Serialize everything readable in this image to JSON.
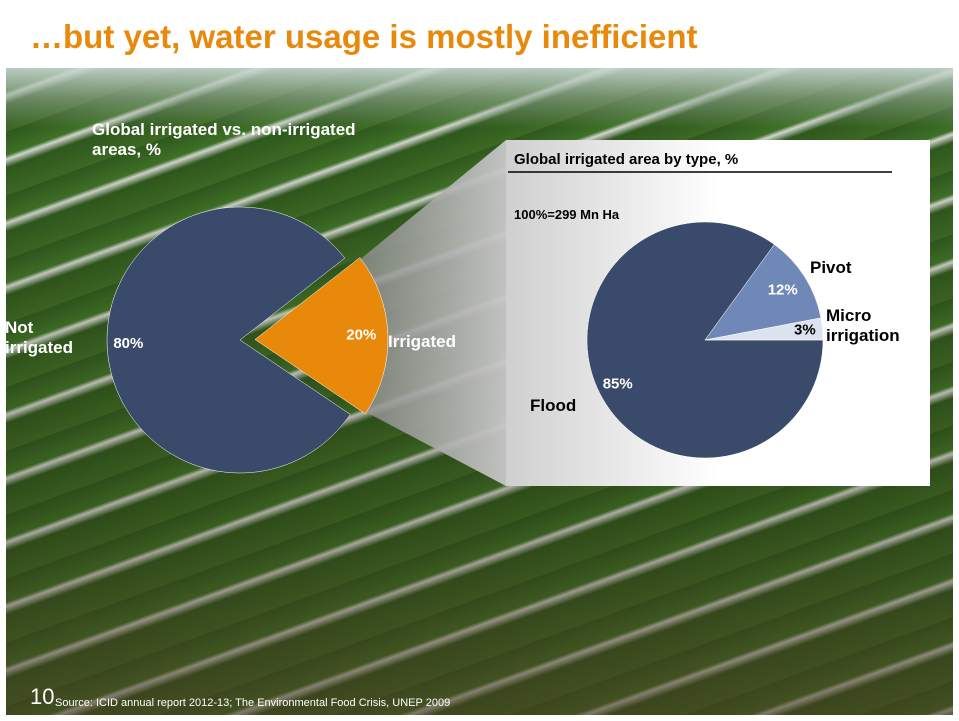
{
  "slide": {
    "title": "…but yet, water usage is mostly inefficient",
    "page_number": "10",
    "source": "Source: ICID annual report 2012-13; The Environmental Food Crisis, UNEP 2009"
  },
  "chart_data": [
    {
      "type": "pie",
      "title": "Global irrigated vs. non-irrigated areas, %",
      "categories": [
        "Not irrigated",
        "Irrigated"
      ],
      "values": [
        80,
        20
      ],
      "value_labels": [
        "80%",
        "20%"
      ],
      "colors": [
        "#3a4a6a",
        "#e8890c"
      ]
    },
    {
      "type": "pie",
      "title": "Global irrigated area by type, %",
      "subtitle": "100%=299 Mn Ha",
      "categories": [
        "Flood",
        "Pivot",
        "Micro irrigation"
      ],
      "values": [
        85,
        12,
        3
      ],
      "value_labels": [
        "85%",
        "12%",
        "3%"
      ],
      "colors": [
        "#3a4a6a",
        "#6f88b8",
        "#dde3ee"
      ]
    }
  ]
}
